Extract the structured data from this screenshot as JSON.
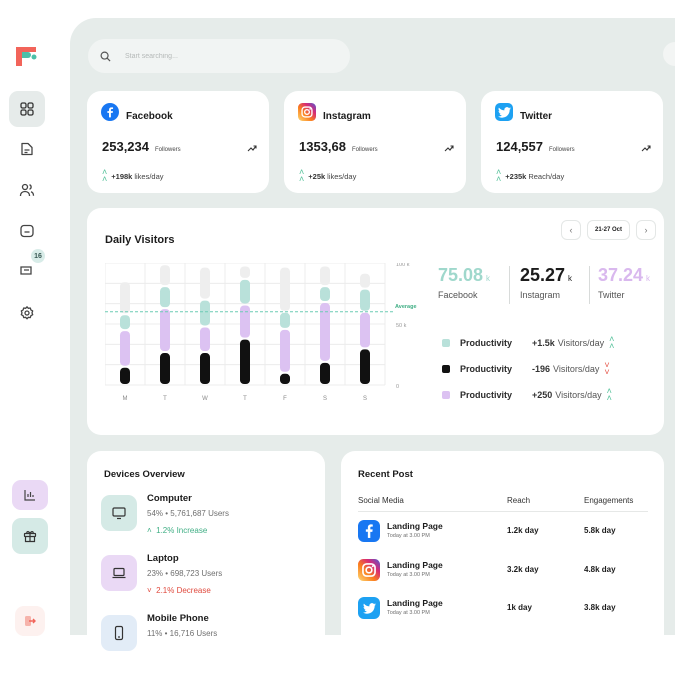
{
  "search": {
    "placeholder": "Start searching..."
  },
  "sidebar": {
    "items": [
      {
        "icon": "grid-icon",
        "active": true
      },
      {
        "icon": "document-icon"
      },
      {
        "icon": "users-icon"
      },
      {
        "icon": "folder-icon"
      },
      {
        "icon": "messages-icon",
        "badge": "16"
      },
      {
        "icon": "settings-icon"
      }
    ],
    "bottom": [
      "chart-icon",
      "gift-icon",
      "logout-icon"
    ]
  },
  "social": [
    {
      "name": "Facebook",
      "count": "253,234",
      "unit": "Followers",
      "rate_value": "+198k",
      "rate_unit": "likes/day",
      "color": "#1877f2"
    },
    {
      "name": "Instagram",
      "count": "1353,68",
      "unit": "Followers",
      "rate_value": "+25k",
      "rate_unit": "likes/day",
      "color": "#e1306c"
    },
    {
      "name": "Twitter",
      "count": "124,557",
      "unit": "Followers",
      "rate_value": "+235k",
      "rate_unit": "Reach/day",
      "color": "#1da1f2"
    }
  ],
  "visitors": {
    "title": "Daily Visitors",
    "date_range": "21-27 Oct",
    "stats": [
      {
        "value": "75.08",
        "suffix": "k",
        "label": "Facebook",
        "color": "#9fd8cc"
      },
      {
        "value": "25.27",
        "suffix": "k",
        "label": "Instagram",
        "color": "#1c1c1c"
      },
      {
        "value": "37.24",
        "suffix": "k",
        "label": "Twitter",
        "color": "#d9b8ee"
      }
    ],
    "legend": [
      {
        "name": "Productivity",
        "value": "+1.5k",
        "unit": "Visitors/day",
        "color": "#b9e1da",
        "trend": "up"
      },
      {
        "name": "Productivity",
        "value": "-196",
        "unit": "Visitors/day",
        "color": "#111111",
        "trend": "down"
      },
      {
        "name": "Productivity",
        "value": "+250",
        "unit": "Visitors/day",
        "color": "#dcc2f2",
        "trend": "up"
      }
    ]
  },
  "chart_data": {
    "type": "bar",
    "categories": [
      "M",
      "T",
      "W",
      "T",
      "F",
      "S",
      "S"
    ],
    "ylim": [
      0,
      100
    ],
    "ytick_labels": [
      "100 k",
      "50 k",
      "0"
    ],
    "average": 60,
    "average_label": "Average",
    "series": [
      {
        "color": "#111111",
        "values": [
          15,
          27,
          27,
          38,
          10,
          19,
          30
        ]
      },
      {
        "color": "#dcc2f2",
        "values": [
          30,
          36,
          21,
          28,
          36,
          49,
          30
        ]
      },
      {
        "color": "#b9e1da",
        "values": [
          13,
          18,
          22,
          21,
          14,
          13,
          19
        ]
      },
      {
        "color": "#eeeeee",
        "values": [
          27,
          18,
          27,
          11,
          37,
          17,
          13
        ]
      }
    ]
  },
  "devices": {
    "title": "Devices Overview",
    "items": [
      {
        "name": "Computer",
        "percent": "54%",
        "users": "5,761,687 Users",
        "change": "1.2% Increase",
        "trend": "up",
        "bg": "#d5eae6"
      },
      {
        "name": "Laptop",
        "percent": "23%",
        "users": "698,723 Users",
        "change": "2.1% Decrease",
        "trend": "down",
        "bg": "#ead9f5"
      },
      {
        "name": "Mobile Phone",
        "percent": "11%",
        "users": "16,716 Users",
        "bg": "#e2ecf7"
      }
    ]
  },
  "recent": {
    "title": "Recent Post",
    "columns": [
      "Social Media",
      "Reach",
      "Engagements"
    ],
    "rows": [
      {
        "platform": "facebook",
        "name": "Landing Page",
        "time": "Today at 3.00 PM",
        "reach": "1.2k day",
        "engagement": "5.8k day"
      },
      {
        "platform": "instagram",
        "name": "Landing Page",
        "time": "Today at 3.00 PM",
        "reach": "3.2k day",
        "engagement": "4.8k day"
      },
      {
        "platform": "twitter",
        "name": "Landing Page",
        "time": "Today at 3.00 PM",
        "reach": "1k day",
        "engagement": "3.8k day"
      }
    ]
  }
}
